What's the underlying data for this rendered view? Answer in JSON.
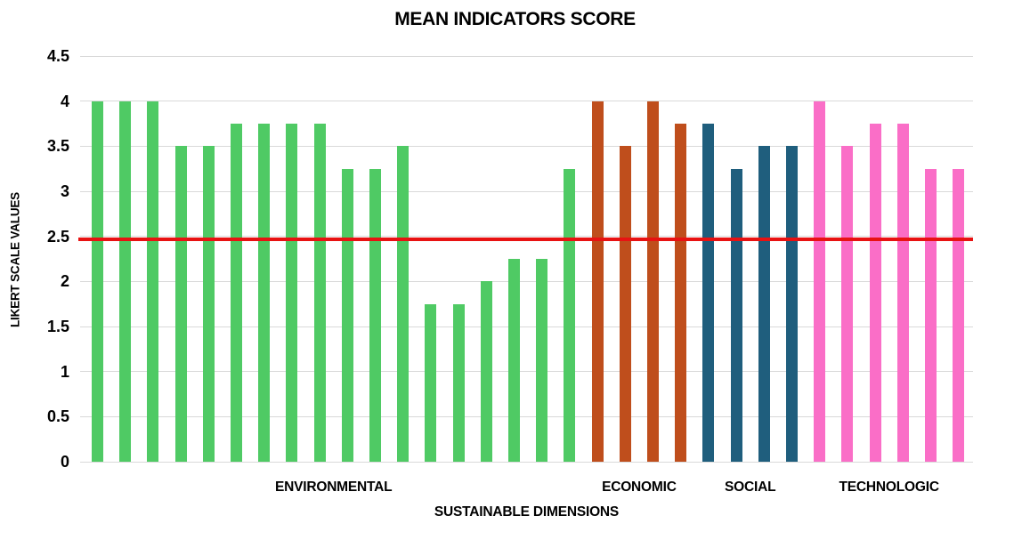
{
  "chart_data": {
    "type": "bar",
    "title": "MEAN INDICATORS SCORE",
    "xlabel": "SUSTAINABLE DIMENSIONS",
    "ylabel": "LIKERT SCALE VALUES",
    "ylim": [
      0,
      4.5
    ],
    "ytick_step": 0.5,
    "ytick_labels": [
      "0",
      "0.5",
      "1",
      "1.5",
      "2",
      "2.5",
      "3",
      "3.5",
      "4",
      "4.5"
    ],
    "grid": true,
    "legend": "none",
    "grid_color": "#d9d9d9",
    "text_color": "#000000",
    "reference_line": {
      "value": 2.5,
      "color": "#e81212"
    },
    "groups": [
      {
        "label": "ENVIRONMENTAL",
        "color": "#4fca64",
        "values": [
          4,
          4,
          4,
          3.5,
          3.5,
          3.75,
          3.75,
          3.75,
          3.75,
          3.25,
          3.25,
          3.5,
          1.75,
          1.75,
          2,
          2.25,
          2.25,
          3.25
        ]
      },
      {
        "label": "ECONOMIC",
        "color": "#bf4e1c",
        "values": [
          4,
          3.5,
          4,
          3.75
        ]
      },
      {
        "label": "SOCIAL",
        "color": "#1f5e7d",
        "values": [
          3.75,
          3.25,
          3.5,
          3.5
        ]
      },
      {
        "label": "TECHNOLOGIC",
        "color": "#fa6ec7",
        "values": [
          4,
          3.5,
          3.75,
          3.75,
          3.25,
          3.25
        ]
      }
    ]
  }
}
